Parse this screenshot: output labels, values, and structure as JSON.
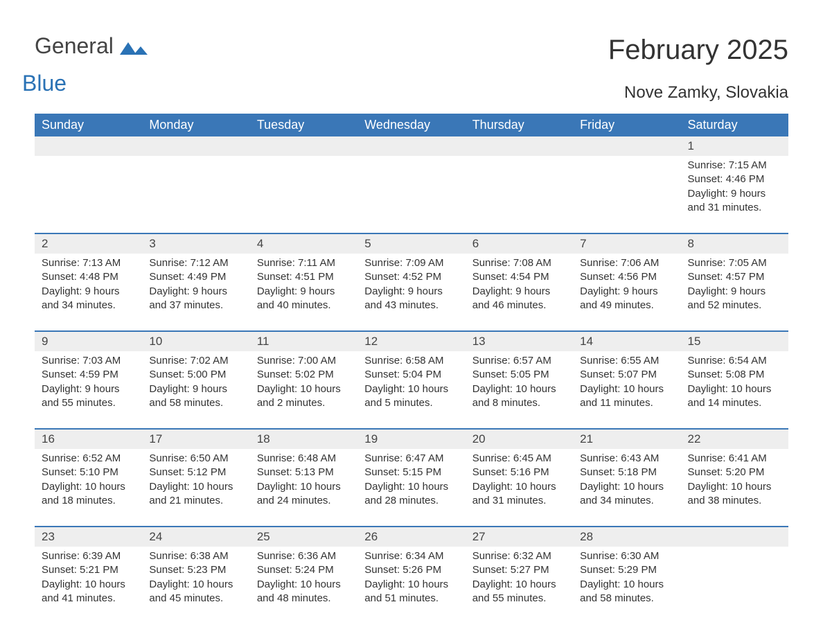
{
  "logo": {
    "text1": "General",
    "text2": "Blue",
    "flag_color": "#2a72b5"
  },
  "title": "February 2025",
  "location": "Nove Zamky, Slovakia",
  "colors": {
    "header_bg": "#3a77b7",
    "header_text": "#ffffff",
    "daynum_bg": "#eeeeee",
    "week_border": "#3a77b7",
    "text": "#333333",
    "logo_gray": "#444444",
    "logo_blue": "#2a72b5",
    "page_bg": "#ffffff"
  },
  "headers": [
    "Sunday",
    "Monday",
    "Tuesday",
    "Wednesday",
    "Thursday",
    "Friday",
    "Saturday"
  ],
  "labels": {
    "sunrise": "Sunrise:",
    "sunset": "Sunset:",
    "daylight": "Daylight:"
  },
  "weeks": [
    [
      {
        "n": "",
        "sr": "",
        "ss": "",
        "dl": ""
      },
      {
        "n": "",
        "sr": "",
        "ss": "",
        "dl": ""
      },
      {
        "n": "",
        "sr": "",
        "ss": "",
        "dl": ""
      },
      {
        "n": "",
        "sr": "",
        "ss": "",
        "dl": ""
      },
      {
        "n": "",
        "sr": "",
        "ss": "",
        "dl": ""
      },
      {
        "n": "",
        "sr": "",
        "ss": "",
        "dl": ""
      },
      {
        "n": "1",
        "sr": "7:15 AM",
        "ss": "4:46 PM",
        "dl": "9 hours and 31 minutes."
      }
    ],
    [
      {
        "n": "2",
        "sr": "7:13 AM",
        "ss": "4:48 PM",
        "dl": "9 hours and 34 minutes."
      },
      {
        "n": "3",
        "sr": "7:12 AM",
        "ss": "4:49 PM",
        "dl": "9 hours and 37 minutes."
      },
      {
        "n": "4",
        "sr": "7:11 AM",
        "ss": "4:51 PM",
        "dl": "9 hours and 40 minutes."
      },
      {
        "n": "5",
        "sr": "7:09 AM",
        "ss": "4:52 PM",
        "dl": "9 hours and 43 minutes."
      },
      {
        "n": "6",
        "sr": "7:08 AM",
        "ss": "4:54 PM",
        "dl": "9 hours and 46 minutes."
      },
      {
        "n": "7",
        "sr": "7:06 AM",
        "ss": "4:56 PM",
        "dl": "9 hours and 49 minutes."
      },
      {
        "n": "8",
        "sr": "7:05 AM",
        "ss": "4:57 PM",
        "dl": "9 hours and 52 minutes."
      }
    ],
    [
      {
        "n": "9",
        "sr": "7:03 AM",
        "ss": "4:59 PM",
        "dl": "9 hours and 55 minutes."
      },
      {
        "n": "10",
        "sr": "7:02 AM",
        "ss": "5:00 PM",
        "dl": "9 hours and 58 minutes."
      },
      {
        "n": "11",
        "sr": "7:00 AM",
        "ss": "5:02 PM",
        "dl": "10 hours and 2 minutes."
      },
      {
        "n": "12",
        "sr": "6:58 AM",
        "ss": "5:04 PM",
        "dl": "10 hours and 5 minutes."
      },
      {
        "n": "13",
        "sr": "6:57 AM",
        "ss": "5:05 PM",
        "dl": "10 hours and 8 minutes."
      },
      {
        "n": "14",
        "sr": "6:55 AM",
        "ss": "5:07 PM",
        "dl": "10 hours and 11 minutes."
      },
      {
        "n": "15",
        "sr": "6:54 AM",
        "ss": "5:08 PM",
        "dl": "10 hours and 14 minutes."
      }
    ],
    [
      {
        "n": "16",
        "sr": "6:52 AM",
        "ss": "5:10 PM",
        "dl": "10 hours and 18 minutes."
      },
      {
        "n": "17",
        "sr": "6:50 AM",
        "ss": "5:12 PM",
        "dl": "10 hours and 21 minutes."
      },
      {
        "n": "18",
        "sr": "6:48 AM",
        "ss": "5:13 PM",
        "dl": "10 hours and 24 minutes."
      },
      {
        "n": "19",
        "sr": "6:47 AM",
        "ss": "5:15 PM",
        "dl": "10 hours and 28 minutes."
      },
      {
        "n": "20",
        "sr": "6:45 AM",
        "ss": "5:16 PM",
        "dl": "10 hours and 31 minutes."
      },
      {
        "n": "21",
        "sr": "6:43 AM",
        "ss": "5:18 PM",
        "dl": "10 hours and 34 minutes."
      },
      {
        "n": "22",
        "sr": "6:41 AM",
        "ss": "5:20 PM",
        "dl": "10 hours and 38 minutes."
      }
    ],
    [
      {
        "n": "23",
        "sr": "6:39 AM",
        "ss": "5:21 PM",
        "dl": "10 hours and 41 minutes."
      },
      {
        "n": "24",
        "sr": "6:38 AM",
        "ss": "5:23 PM",
        "dl": "10 hours and 45 minutes."
      },
      {
        "n": "25",
        "sr": "6:36 AM",
        "ss": "5:24 PM",
        "dl": "10 hours and 48 minutes."
      },
      {
        "n": "26",
        "sr": "6:34 AM",
        "ss": "5:26 PM",
        "dl": "10 hours and 51 minutes."
      },
      {
        "n": "27",
        "sr": "6:32 AM",
        "ss": "5:27 PM",
        "dl": "10 hours and 55 minutes."
      },
      {
        "n": "28",
        "sr": "6:30 AM",
        "ss": "5:29 PM",
        "dl": "10 hours and 58 minutes."
      },
      {
        "n": "",
        "sr": "",
        "ss": "",
        "dl": ""
      }
    ]
  ]
}
